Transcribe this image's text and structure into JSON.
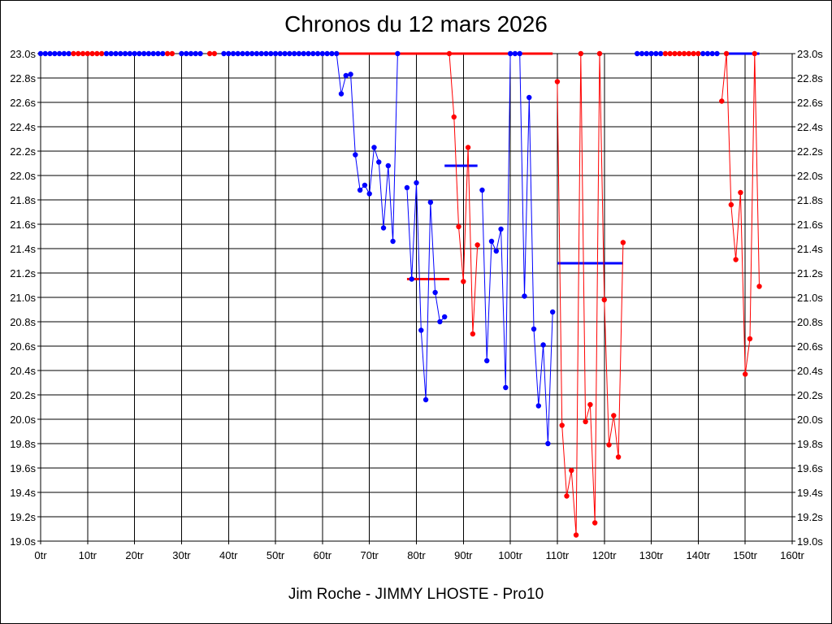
{
  "chart_data": {
    "type": "line",
    "title": "Chronos du 12 mars 2026",
    "footer": "Jim Roche - JIMMY LHOSTE - Pro10",
    "xlabel": "",
    "ylabel": "",
    "xlim": [
      0,
      160
    ],
    "ylim": [
      19.0,
      23.0
    ],
    "x_ticks": [
      0,
      10,
      20,
      30,
      40,
      50,
      60,
      70,
      80,
      90,
      100,
      110,
      120,
      130,
      140,
      150,
      160
    ],
    "x_tick_labels": [
      "0tr",
      "10tr",
      "20tr",
      "30tr",
      "40tr",
      "50tr",
      "60tr",
      "70tr",
      "80tr",
      "90tr",
      "100tr",
      "110tr",
      "120tr",
      "130tr",
      "140tr",
      "150tr",
      "160tr"
    ],
    "y_ticks": [
      19.0,
      19.2,
      19.4,
      19.6,
      19.8,
      20.0,
      20.2,
      20.4,
      20.6,
      20.8,
      21.0,
      21.2,
      21.4,
      21.6,
      21.8,
      22.0,
      22.2,
      22.4,
      22.6,
      22.8,
      23.0
    ],
    "y_tick_labels": [
      "19.0s",
      "19.2s",
      "19.4s",
      "19.6s",
      "19.8s",
      "20.0s",
      "20.2s",
      "20.4s",
      "20.6s",
      "20.8s",
      "21.0s",
      "21.2s",
      "21.4s",
      "21.6s",
      "21.8s",
      "22.0s",
      "22.2s",
      "22.4s",
      "22.6s",
      "22.8s",
      "23.0s"
    ],
    "grid": true,
    "colors": {
      "blue": "#0000ff",
      "red": "#ff0000",
      "grid": "#000000"
    },
    "series": [
      {
        "color": "blue",
        "points": [
          [
            0,
            23.0
          ],
          [
            1,
            23.0
          ],
          [
            2,
            23.0
          ],
          [
            3,
            23.0
          ],
          [
            4,
            23.0
          ],
          [
            5,
            23.0
          ],
          [
            6,
            23.0
          ]
        ]
      },
      {
        "color": "red",
        "points": [
          [
            7,
            23.0
          ],
          [
            8,
            23.0
          ],
          [
            9,
            23.0
          ],
          [
            10,
            23.0
          ],
          [
            11,
            23.0
          ],
          [
            12,
            23.0
          ],
          [
            13,
            23.0
          ]
        ]
      },
      {
        "color": "blue",
        "points": [
          [
            14,
            23.0
          ],
          [
            15,
            23.0
          ],
          [
            16,
            23.0
          ],
          [
            17,
            23.0
          ],
          [
            18,
            23.0
          ],
          [
            19,
            23.0
          ],
          [
            20,
            23.0
          ],
          [
            21,
            23.0
          ],
          [
            22,
            23.0
          ],
          [
            23,
            23.0
          ],
          [
            24,
            23.0
          ],
          [
            25,
            23.0
          ],
          [
            26,
            23.0
          ]
        ]
      },
      {
        "color": "red",
        "points": [
          [
            27,
            23.0
          ],
          [
            28,
            23.0
          ]
        ]
      },
      {
        "color": "blue",
        "points": [
          [
            30,
            23.0
          ],
          [
            31,
            23.0
          ],
          [
            32,
            23.0
          ],
          [
            33,
            23.0
          ],
          [
            34,
            23.0
          ]
        ]
      },
      {
        "color": "red",
        "points": [
          [
            36,
            23.0
          ],
          [
            37,
            23.0
          ]
        ]
      },
      {
        "color": "blue",
        "points": [
          [
            39,
            23.0
          ],
          [
            40,
            23.0
          ],
          [
            41,
            23.0
          ],
          [
            42,
            23.0
          ],
          [
            43,
            23.0
          ],
          [
            44,
            23.0
          ],
          [
            45,
            23.0
          ],
          [
            46,
            23.0
          ],
          [
            47,
            23.0
          ],
          [
            48,
            23.0
          ],
          [
            49,
            23.0
          ],
          [
            50,
            23.0
          ],
          [
            51,
            23.0
          ],
          [
            52,
            23.0
          ],
          [
            53,
            23.0
          ],
          [
            54,
            23.0
          ],
          [
            55,
            23.0
          ],
          [
            56,
            23.0
          ],
          [
            57,
            23.0
          ],
          [
            58,
            23.0
          ],
          [
            59,
            23.0
          ],
          [
            60,
            23.0
          ],
          [
            61,
            23.0
          ],
          [
            62,
            23.0
          ],
          [
            63,
            23.0
          ],
          [
            64,
            22.67
          ],
          [
            65,
            22.82
          ],
          [
            66,
            22.83
          ],
          [
            67,
            22.17
          ],
          [
            68,
            21.88
          ],
          [
            69,
            21.92
          ],
          [
            70,
            21.85
          ],
          [
            71,
            22.23
          ],
          [
            72,
            22.11
          ],
          [
            73,
            21.57
          ],
          [
            74,
            22.08
          ],
          [
            75,
            21.46
          ],
          [
            76,
            23.0
          ]
        ]
      },
      {
        "color": "blue",
        "points": [
          [
            78,
            21.9
          ],
          [
            79,
            21.15
          ],
          [
            80,
            21.94
          ],
          [
            81,
            20.73
          ],
          [
            82,
            20.16
          ],
          [
            83,
            21.78
          ],
          [
            84,
            21.04
          ],
          [
            85,
            20.8
          ],
          [
            86,
            20.84
          ]
        ]
      },
      {
        "color": "red",
        "points": [
          [
            87,
            23.0
          ],
          [
            88,
            22.48
          ],
          [
            89,
            21.58
          ],
          [
            90,
            21.13
          ],
          [
            91,
            22.23
          ],
          [
            92,
            20.7
          ],
          [
            93,
            21.43
          ]
        ]
      },
      {
        "color": "blue",
        "points": [
          [
            94,
            21.88
          ],
          [
            95,
            20.48
          ],
          [
            96,
            21.46
          ],
          [
            97,
            21.38
          ],
          [
            98,
            21.56
          ],
          [
            99,
            20.26
          ],
          [
            100,
            23.0
          ],
          [
            101,
            23.0
          ],
          [
            102,
            23.0
          ],
          [
            103,
            21.01
          ],
          [
            104,
            22.64
          ],
          [
            105,
            20.74
          ],
          [
            106,
            20.11
          ],
          [
            107,
            20.61
          ],
          [
            108,
            19.8
          ],
          [
            109,
            20.88
          ]
        ]
      },
      {
        "color": "red",
        "points": [
          [
            110,
            22.77
          ],
          [
            111,
            19.95
          ],
          [
            112,
            19.37
          ],
          [
            113,
            19.58
          ],
          [
            114,
            19.05
          ],
          [
            115,
            23.0
          ],
          [
            116,
            19.98
          ],
          [
            117,
            20.12
          ],
          [
            118,
            19.15
          ],
          [
            119,
            23.0
          ],
          [
            120,
            20.98
          ],
          [
            121,
            19.79
          ],
          [
            122,
            20.03
          ],
          [
            123,
            19.69
          ],
          [
            124,
            21.45
          ]
        ]
      },
      {
        "color": "blue",
        "points": [
          [
            127,
            23.0
          ],
          [
            128,
            23.0
          ],
          [
            129,
            23.0
          ],
          [
            130,
            23.0
          ],
          [
            131,
            23.0
          ],
          [
            132,
            23.0
          ]
        ]
      },
      {
        "color": "red",
        "points": [
          [
            133,
            23.0
          ],
          [
            134,
            23.0
          ],
          [
            135,
            23.0
          ],
          [
            136,
            23.0
          ],
          [
            137,
            23.0
          ],
          [
            138,
            23.0
          ],
          [
            139,
            23.0
          ],
          [
            140,
            23.0
          ]
        ]
      },
      {
        "color": "blue",
        "points": [
          [
            141,
            23.0
          ],
          [
            142,
            23.0
          ],
          [
            143,
            23.0
          ],
          [
            144,
            23.0
          ]
        ]
      },
      {
        "color": "red",
        "points": [
          [
            145,
            22.61
          ],
          [
            146,
            23.0
          ],
          [
            147,
            21.76
          ],
          [
            148,
            21.31
          ],
          [
            149,
            21.86
          ],
          [
            150,
            20.37
          ],
          [
            151,
            20.66
          ],
          [
            152,
            23.0
          ],
          [
            153,
            21.09
          ]
        ]
      }
    ],
    "average_lines": [
      {
        "color": "red",
        "x": [
          63,
          109
        ],
        "y": 23.0
      },
      {
        "color": "red",
        "x": [
          78,
          87
        ],
        "y": 21.15
      },
      {
        "color": "blue",
        "x": [
          86,
          93
        ],
        "y": 22.08
      },
      {
        "color": "blue",
        "x": [
          110,
          124
        ],
        "y": 21.28
      },
      {
        "color": "blue",
        "x": [
          146,
          153
        ],
        "y": 23.0
      }
    ]
  }
}
